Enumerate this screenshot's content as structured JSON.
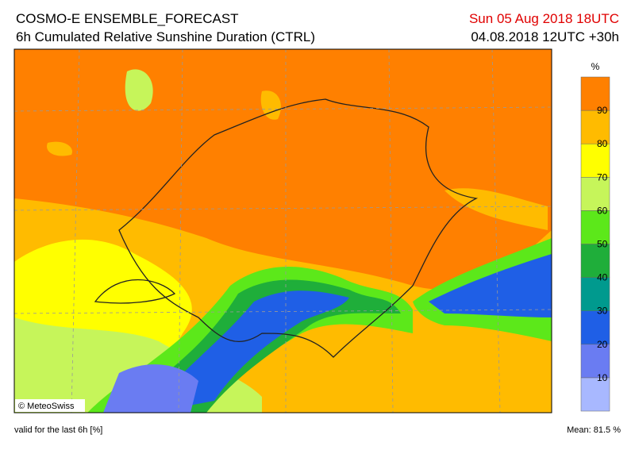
{
  "header": {
    "title": "COSMO-E ENSEMBLE_FORECAST",
    "subtitle": "6h Cumulated Relative Sunshine Duration (CTRL)",
    "valid_time": "Sun 05 Aug 2018 18UTC",
    "run": "04.08.2018 12UTC +30h"
  },
  "map": {
    "credit": "© MeteoSwiss"
  },
  "colorbar": {
    "unit": "%",
    "colors": [
      "#a8b8ff",
      "#6a7cf2",
      "#1f5fe6",
      "#009a8e",
      "#1fae3a",
      "#5ce81a",
      "#c6f55a",
      "#ffff00",
      "#ffbb00",
      "#ff8000"
    ],
    "ticks": [
      10,
      20,
      30,
      40,
      50,
      60,
      70,
      80,
      90
    ]
  },
  "footer": {
    "note": "valid for the last 6h [%]",
    "mean": "Mean:  81.5 %"
  }
}
